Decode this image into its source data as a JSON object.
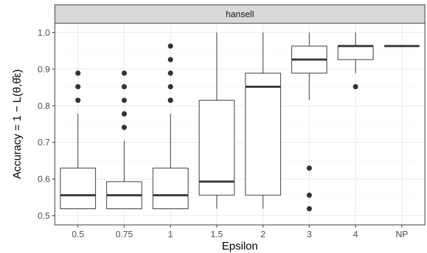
{
  "chart_data": {
    "type": "boxplot",
    "facet": "hansell",
    "xlabel": "Epsilon",
    "ylabel": "Accuracy = 1 − L(θ,θ̂ε)",
    "ylim": [
      0.5,
      1.0
    ],
    "yticks": [
      0.5,
      0.6,
      0.7,
      0.8,
      0.9,
      1.0
    ],
    "ytick_labels": [
      "0.5",
      "0.6",
      "0.7",
      "0.8",
      "0.9",
      "1.0"
    ],
    "grid": true,
    "categories": [
      "0.5",
      "0.75",
      "1",
      "1.5",
      "2",
      "3",
      "4",
      "NP"
    ],
    "boxes": [
      {
        "category": "0.5",
        "lower_whisker": 0.519,
        "q1": 0.519,
        "median": 0.556,
        "q3": 0.63,
        "upper_whisker": 0.778,
        "outliers": [
          0.815,
          0.852,
          0.889
        ]
      },
      {
        "category": "0.75",
        "lower_whisker": 0.519,
        "q1": 0.519,
        "median": 0.556,
        "q3": 0.593,
        "upper_whisker": 0.704,
        "outliers": [
          0.741,
          0.778,
          0.778,
          0.815,
          0.852,
          0.889
        ]
      },
      {
        "category": "1",
        "lower_whisker": 0.519,
        "q1": 0.519,
        "median": 0.556,
        "q3": 0.63,
        "upper_whisker": 0.778,
        "outliers": [
          0.815,
          0.815,
          0.852,
          0.889,
          0.926,
          0.963
        ]
      },
      {
        "category": "1.5",
        "lower_whisker": 0.519,
        "q1": 0.556,
        "median": 0.593,
        "q3": 0.815,
        "upper_whisker": 1.0,
        "outliers": []
      },
      {
        "category": "2",
        "lower_whisker": 0.519,
        "q1": 0.556,
        "median": 0.852,
        "q3": 0.889,
        "upper_whisker": 1.0,
        "outliers": []
      },
      {
        "category": "3",
        "lower_whisker": 0.815,
        "q1": 0.889,
        "median": 0.926,
        "q3": 0.963,
        "upper_whisker": 1.0,
        "outliers": [
          0.519,
          0.556,
          0.63
        ]
      },
      {
        "category": "4",
        "lower_whisker": 0.889,
        "q1": 0.926,
        "median": 0.963,
        "q3": 0.963,
        "upper_whisker": 1.0,
        "outliers": [
          0.852
        ]
      },
      {
        "category": "NP",
        "lower_whisker": 0.963,
        "q1": 0.963,
        "median": 0.963,
        "q3": 0.963,
        "upper_whisker": 0.963,
        "outliers": []
      }
    ],
    "colors": {
      "panel_border": "#333333",
      "strip_fill": "#d9d9d9",
      "grid_major": "#ebebeb",
      "grid_minor": "#f5f5f5",
      "box_line": "#333333",
      "tick_text": "#4d4d4d"
    }
  }
}
